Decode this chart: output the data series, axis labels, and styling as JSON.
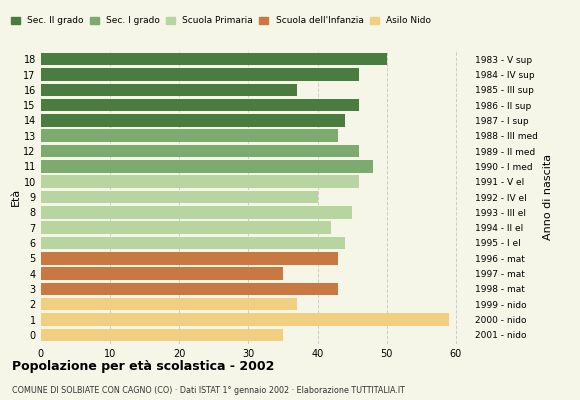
{
  "ages": [
    18,
    17,
    16,
    15,
    14,
    13,
    12,
    11,
    10,
    9,
    8,
    7,
    6,
    5,
    4,
    3,
    2,
    1,
    0
  ],
  "values": [
    50,
    46,
    37,
    46,
    44,
    43,
    46,
    48,
    46,
    40,
    45,
    42,
    44,
    43,
    35,
    43,
    37,
    59,
    35
  ],
  "categories": [
    "Sec. II grado",
    "Sec. I grado",
    "Scuola Primaria",
    "Scuola dell'Infanzia",
    "Asilo Nido"
  ],
  "bar_colors": [
    "#4a7c40",
    "#4a7c40",
    "#4a7c40",
    "#4a7c40",
    "#4a7c40",
    "#7daa6e",
    "#7daa6e",
    "#7daa6e",
    "#b8d4a0",
    "#b8d4a0",
    "#b8d4a0",
    "#b8d4a0",
    "#b8d4a0",
    "#c87941",
    "#c87941",
    "#c87941",
    "#f0d080",
    "#f0d080",
    "#f0d080"
  ],
  "legend_colors": [
    "#4a7c40",
    "#7daa6e",
    "#b8d4a0",
    "#c87941",
    "#f0d080"
  ],
  "right_labels": [
    "1983 - V sup",
    "1984 - IV sup",
    "1985 - III sup",
    "1986 - II sup",
    "1987 - I sup",
    "1988 - III med",
    "1989 - II med",
    "1990 - I med",
    "1991 - V el",
    "1992 - IV el",
    "1993 - III el",
    "1994 - II el",
    "1995 - I el",
    "1996 - mat",
    "1997 - mat",
    "1998 - mat",
    "1999 - nido",
    "2000 - nido",
    "2001 - nido"
  ],
  "xlabel_main": "Popolazione per età scolastica - 2002",
  "subtitle": "COMUNE DI SOLBIATE CON CAGNO (CO) · Dati ISTAT 1° gennaio 2002 · Elaborazione TUTTITALIA.IT",
  "ylabel": "Età",
  "xlabel_right": "Anno di nascita",
  "xlim": [
    0,
    62
  ],
  "xticks": [
    0,
    10,
    20,
    30,
    40,
    50,
    60
  ],
  "background_color": "#f5f5e8",
  "gridcolor": "#cccccc"
}
